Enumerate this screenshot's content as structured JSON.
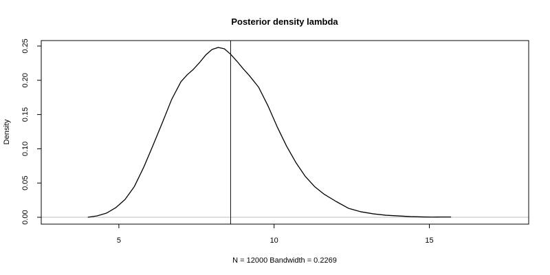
{
  "chart_data": {
    "type": "line",
    "title": "Posterior density lambda",
    "xlabel": "N = 12000   Bandwidth = 0.2269",
    "ylabel": "Density",
    "xlim": [
      2.5,
      18.2
    ],
    "ylim": [
      -0.01,
      0.258
    ],
    "x_ticks": [
      5,
      10,
      15
    ],
    "x_tick_labels": [
      "5",
      "10",
      "15"
    ],
    "y_ticks": [
      0.0,
      0.05,
      0.1,
      0.15,
      0.2,
      0.25
    ],
    "y_tick_labels": [
      "0.00",
      "0.05",
      "0.10",
      "0.15",
      "0.20",
      "0.25"
    ],
    "grid": false,
    "baseline": 0,
    "vline_x": 8.6,
    "colors": {
      "density": "#000000",
      "vline": "#00008b",
      "baseline": "#bebebe",
      "frame": "#000000"
    },
    "series": [
      {
        "x": [
          4.0,
          4.3,
          4.6,
          4.9,
          5.2,
          5.5,
          5.8,
          6.1,
          6.4,
          6.7,
          7.0,
          7.2,
          7.4,
          7.6,
          7.8,
          8.0,
          8.2,
          8.4,
          8.6,
          8.8,
          9.0,
          9.2,
          9.5,
          9.8,
          10.1,
          10.4,
          10.7,
          11.0,
          11.3,
          11.6,
          12.0,
          12.4,
          12.8,
          13.2,
          13.6,
          14.0,
          14.4,
          14.8,
          15.1,
          15.4,
          15.7
        ],
        "y": [
          0.0,
          0.002,
          0.006,
          0.014,
          0.026,
          0.045,
          0.073,
          0.105,
          0.138,
          0.172,
          0.198,
          0.208,
          0.216,
          0.226,
          0.237,
          0.245,
          0.248,
          0.246,
          0.238,
          0.228,
          0.217,
          0.207,
          0.19,
          0.163,
          0.132,
          0.104,
          0.08,
          0.06,
          0.045,
          0.034,
          0.023,
          0.013,
          0.008,
          0.005,
          0.003,
          0.002,
          0.001,
          0.0005,
          0.0003,
          0.0004,
          0.0004
        ]
      }
    ]
  }
}
